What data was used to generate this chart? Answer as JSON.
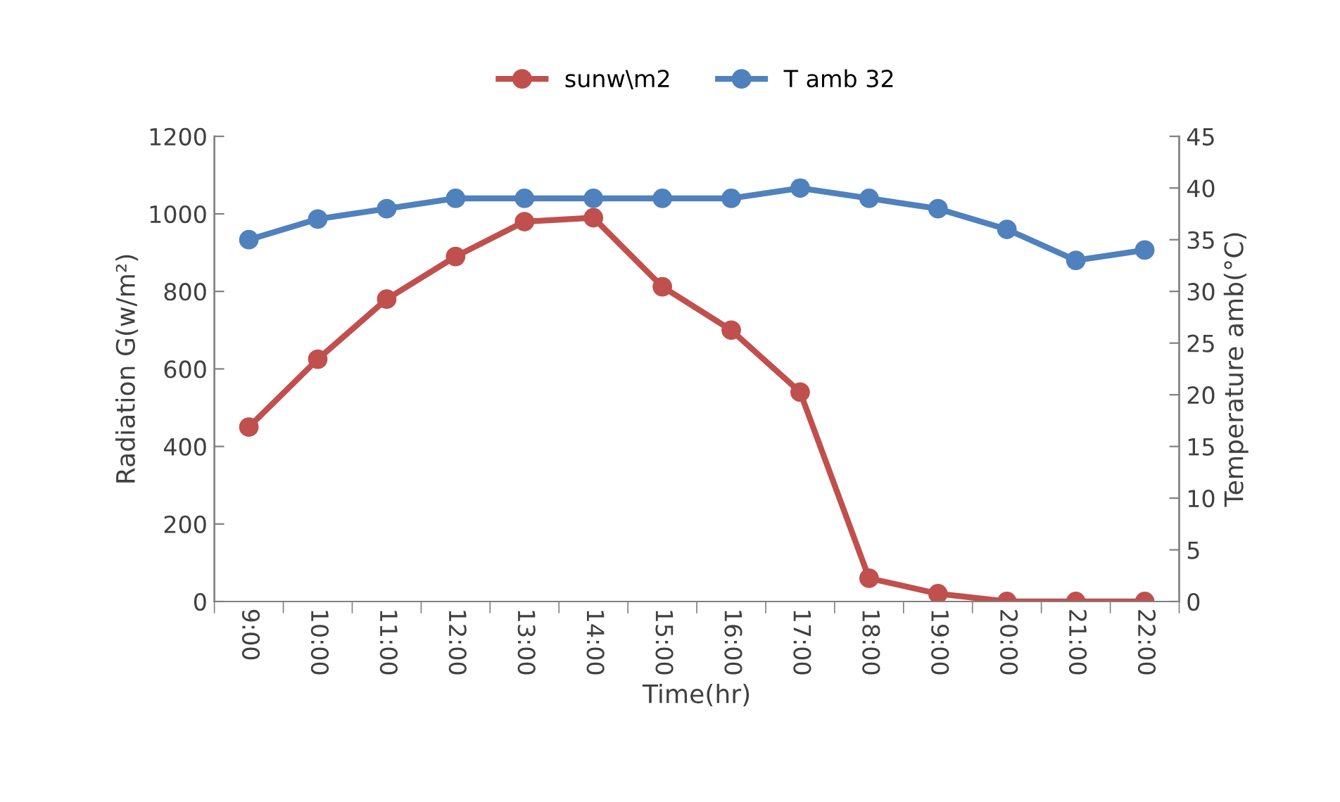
{
  "chart_data": {
    "type": "line",
    "categories": [
      "9:00",
      "10:00",
      "11:00",
      "12:00",
      "13:00",
      "14:00",
      "15:00",
      "16:00",
      "17:00",
      "18:00",
      "19:00",
      "20:00",
      "21:00",
      "22:00"
    ],
    "series": [
      {
        "name": "sunw\\m2",
        "color": "#c0504d",
        "values": [
          450,
          625,
          780,
          890,
          980,
          990,
          812,
          700,
          540,
          60,
          20,
          0,
          0,
          0
        ]
      },
      {
        "name": "T amb 32",
        "color": "#4f81bd",
        "axis": "y2",
        "values": [
          35,
          37,
          38,
          39,
          39,
          39,
          39,
          39,
          40,
          39,
          38,
          36,
          33,
          34
        ]
      }
    ],
    "xlabel": "Time(hr)",
    "ylabel": "Radiation G(w/m²)",
    "y2label": "Temperature amb(°C)",
    "ylim": [
      0,
      1200
    ],
    "yticks": [
      0,
      200,
      400,
      600,
      800,
      1000,
      1200
    ],
    "y2lim": [
      0,
      45
    ],
    "y2ticks": [
      0,
      5,
      10,
      15,
      20,
      25,
      30,
      35,
      40,
      45
    ],
    "marker": "circle",
    "line_style": "solid",
    "legend": "top",
    "grid": false
  }
}
